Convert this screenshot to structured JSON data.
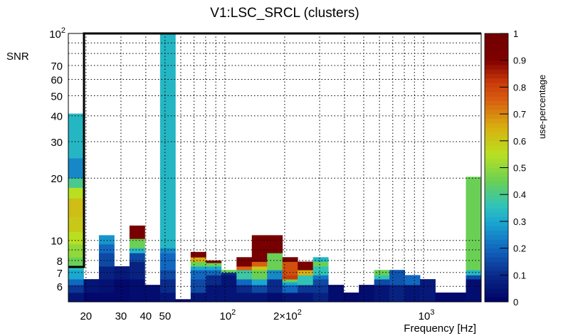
{
  "chart_data": {
    "type": "heatmap",
    "title": "V1:LSC_SRCL (clusters)",
    "xlabel": "Frequency [Hz]",
    "ylabel": "SNR",
    "zlabel": "use-percentage",
    "xscale": "log",
    "yscale": "log",
    "xlim": [
      16.3,
      1950
    ],
    "ylim": [
      5.05,
      100
    ],
    "zlim": [
      0,
      1
    ],
    "grid": true,
    "legend": "colorbar-right",
    "x_ticks": [
      {
        "value": 20,
        "label": "20",
        "exp": ""
      },
      {
        "value": 30,
        "label": "30",
        "exp": ""
      },
      {
        "value": 40,
        "label": "40",
        "exp": ""
      },
      {
        "value": 50,
        "label": "50",
        "exp": ""
      },
      {
        "value": 100,
        "label": "10",
        "exp": "2"
      },
      {
        "value": 200,
        "label": "2×10",
        "exp": "2"
      },
      {
        "value": 1000,
        "label": "10",
        "exp": "3"
      }
    ],
    "y_ticks": [
      {
        "value": 6,
        "label": "6",
        "exp": ""
      },
      {
        "value": 7,
        "label": "7",
        "exp": ""
      },
      {
        "value": 8,
        "label": "8",
        "exp": ""
      },
      {
        "value": 10,
        "label": "10",
        "exp": ""
      },
      {
        "value": 20,
        "label": "20",
        "exp": ""
      },
      {
        "value": 30,
        "label": "30",
        "exp": ""
      },
      {
        "value": 40,
        "label": "40",
        "exp": ""
      },
      {
        "value": 50,
        "label": "50",
        "exp": ""
      },
      {
        "value": 60,
        "label": "60",
        "exp": ""
      },
      {
        "value": 70,
        "label": "70",
        "exp": ""
      },
      {
        "value": 100,
        "label": "10",
        "exp": "2"
      }
    ],
    "z_ticks": [
      "0",
      "0.1",
      "0.2",
      "0.3",
      "0.4",
      "0.5",
      "0.6",
      "0.7",
      "0.8",
      "0.9",
      "1"
    ],
    "colormap": [
      [
        0.0,
        "#000064"
      ],
      [
        0.1,
        "#0a2a8a"
      ],
      [
        0.2,
        "#1168c0"
      ],
      [
        0.3,
        "#1aa8d0"
      ],
      [
        0.36,
        "#30c4b8"
      ],
      [
        0.45,
        "#6ad055"
      ],
      [
        0.55,
        "#b8e020"
      ],
      [
        0.65,
        "#d8b010"
      ],
      [
        0.75,
        "#d86010"
      ],
      [
        0.82,
        "#c83a0a"
      ],
      [
        0.9,
        "#800000"
      ],
      [
        1.0,
        "#700000"
      ]
    ],
    "columns_note": "27 log-uniform frequency bins; each column is a stack of [snr_top, use_percentage] segments from the bottom",
    "columns": [
      [
        [
          5.6,
          0.05
        ],
        [
          6.1,
          0.12
        ],
        [
          6.5,
          0.2
        ],
        [
          7.2,
          0.3
        ],
        [
          7.5,
          0.35
        ],
        [
          8.3,
          0.45
        ],
        [
          9.6,
          0.5
        ],
        [
          11,
          0.55
        ],
        [
          13,
          0.6
        ],
        [
          16,
          0.62
        ],
        [
          18,
          0.55
        ],
        [
          20,
          0.4
        ],
        [
          25,
          0.25
        ],
        [
          41,
          0.33
        ]
      ],
      [
        [
          5.6,
          0.02
        ],
        [
          6.5,
          0.05
        ]
      ],
      [
        [
          5.6,
          0.02
        ],
        [
          6.5,
          0.04
        ],
        [
          7.5,
          0.08
        ],
        [
          8.7,
          0.15
        ],
        [
          9.6,
          0.2
        ],
        [
          10.6,
          0.27
        ]
      ],
      [
        [
          6.5,
          0.02
        ],
        [
          7.5,
          0.06
        ]
      ],
      [
        [
          6.5,
          0.03
        ],
        [
          7.9,
          0.08
        ],
        [
          8.7,
          0.15
        ],
        [
          9.2,
          0.33
        ],
        [
          10.2,
          0.45
        ],
        [
          11.8,
          0.95
        ]
      ],
      [
        [
          6.1,
          0.03
        ]
      ],
      [
        [
          5.6,
          0.05
        ],
        [
          6.5,
          0.1
        ],
        [
          7.2,
          0.15
        ],
        [
          8.7,
          0.2
        ],
        [
          9.2,
          0.25
        ],
        [
          100,
          0.33
        ]
      ],
      [
        [
          5.2,
          0.02
        ]
      ],
      [
        [
          5.6,
          0.05
        ],
        [
          6.5,
          0.15
        ],
        [
          7.2,
          0.2
        ],
        [
          7.5,
          0.3
        ],
        [
          7.9,
          0.45
        ],
        [
          8.3,
          0.65
        ],
        [
          8.8,
          0.95
        ]
      ],
      [
        [
          6.1,
          0.05
        ],
        [
          6.8,
          0.1
        ],
        [
          7.2,
          0.2
        ],
        [
          7.5,
          0.3
        ],
        [
          7.8,
          0.45
        ],
        [
          8.0,
          0.95
        ]
      ],
      [
        [
          6.8,
          0.05
        ],
        [
          7.0,
          0.1
        ],
        [
          7.2,
          0.45
        ]
      ],
      [
        [
          5.6,
          0.05
        ],
        [
          6.1,
          0.1
        ],
        [
          6.5,
          0.2
        ],
        [
          7.2,
          0.38
        ],
        [
          7.5,
          0.75
        ],
        [
          8.3,
          0.95
        ]
      ],
      [
        [
          5.6,
          0.05
        ],
        [
          6.1,
          0.15
        ],
        [
          6.5,
          0.3
        ],
        [
          7.2,
          0.45
        ],
        [
          7.5,
          0.6
        ],
        [
          7.9,
          0.75
        ],
        [
          10.6,
          0.95
        ]
      ],
      [
        [
          5.6,
          0.03
        ],
        [
          6.5,
          0.1
        ],
        [
          7.2,
          0.25
        ],
        [
          8.7,
          0.45
        ],
        [
          10.6,
          0.95
        ]
      ],
      [
        [
          5.6,
          0.05
        ],
        [
          6.1,
          0.2
        ],
        [
          6.3,
          0.3
        ],
        [
          6.5,
          0.45
        ],
        [
          6.8,
          0.82
        ],
        [
          7.9,
          0.78
        ],
        [
          8.3,
          0.95
        ]
      ],
      [
        [
          5.6,
          0.05
        ],
        [
          6.1,
          0.12
        ],
        [
          6.8,
          0.36
        ],
        [
          7.2,
          0.65
        ],
        [
          7.9,
          0.95
        ]
      ],
      [
        [
          5.6,
          0.08
        ],
        [
          6.1,
          0.12
        ],
        [
          6.5,
          0.15
        ],
        [
          6.8,
          0.22
        ],
        [
          7.5,
          0.36
        ],
        [
          7.9,
          0.45
        ],
        [
          8.3,
          0.33
        ]
      ],
      [
        [
          6.1,
          0.03
        ]
      ],
      [
        [
          5.6,
          0.02
        ]
      ],
      [
        [
          6.1,
          0.03
        ]
      ],
      [
        [
          6.1,
          0.05
        ],
        [
          6.5,
          0.15
        ],
        [
          6.8,
          0.36
        ],
        [
          7.2,
          0.45
        ]
      ],
      [
        [
          6.1,
          0.08
        ],
        [
          7.2,
          0.17
        ]
      ],
      [
        [
          6.1,
          0.05
        ],
        [
          6.8,
          0.2
        ]
      ],
      [
        [
          6.5,
          0.06
        ]
      ],
      [
        [
          5.6,
          0.02
        ]
      ],
      [
        [
          5.6,
          0.02
        ]
      ],
      [
        [
          6.5,
          0.03
        ],
        [
          6.8,
          0.15
        ],
        [
          7.2,
          0.33
        ],
        [
          20.3,
          0.45
        ]
      ]
    ]
  }
}
